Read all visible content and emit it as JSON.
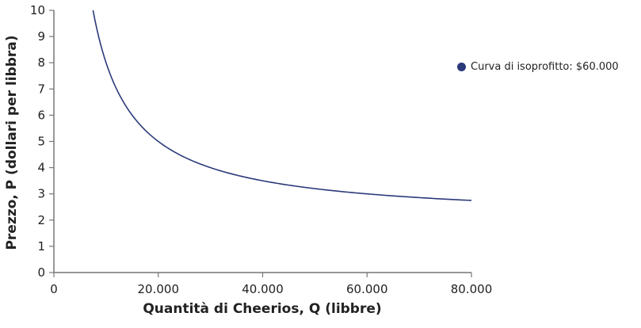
{
  "chart_data": {
    "type": "line",
    "title": "",
    "xlabel": "Quantità di Cheerios, Q (libbre)",
    "ylabel": "Prezzo, P (dollari per libbra)",
    "xlim": [
      0,
      80000
    ],
    "ylim": [
      0,
      10
    ],
    "x_ticks": [
      0,
      20000,
      40000,
      60000,
      80000
    ],
    "x_tick_labels": [
      "0",
      "20.000",
      "40.000",
      "60.000",
      "80.000"
    ],
    "y_ticks": [
      0,
      1,
      2,
      3,
      4,
      5,
      6,
      7,
      8,
      9,
      10
    ],
    "y_tick_labels": [
      "0",
      "1",
      "2",
      "3",
      "4",
      "5",
      "6",
      "7",
      "8",
      "9",
      "10"
    ],
    "grid": false,
    "legend_position": "right",
    "series": [
      {
        "name": "Curva di isoprofitto: $60.000",
        "color": "#2b3a7a",
        "formula": "P = 2 + 60000 / Q",
        "x": [
          7500,
          10000,
          12000,
          15000,
          20000,
          25000,
          30000,
          40000,
          50000,
          60000,
          70000,
          80000
        ],
        "y": [
          10.0,
          8.0,
          7.0,
          6.0,
          5.0,
          4.4,
          4.0,
          3.5,
          3.2,
          3.0,
          2.86,
          2.75
        ]
      }
    ]
  },
  "legend": {
    "items": [
      {
        "label": "Curva di isoprofitto: $60.000",
        "color": "#2b3a7a"
      }
    ]
  },
  "axes": {
    "x_title": "Quantità di Cheerios, Q (libbre)",
    "y_title": "Prezzo, P (dollari per libbra)"
  }
}
